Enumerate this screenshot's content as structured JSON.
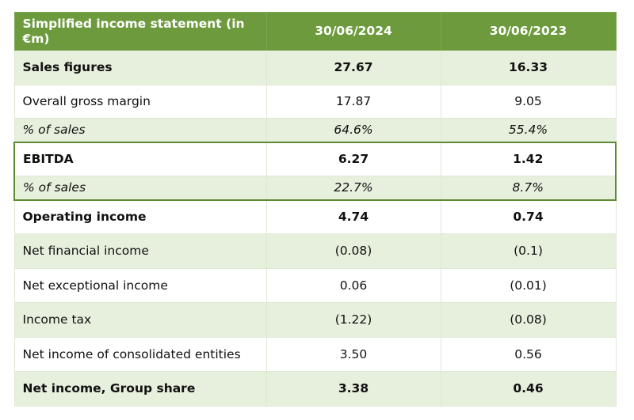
{
  "table": {
    "header": {
      "label": "Simplified income statement (in €m)",
      "col1": "30/06/2024",
      "col2": "30/06/2023"
    },
    "rows": [
      {
        "label": "Sales figures",
        "v2024": "27.67",
        "v2023": "16.33"
      },
      {
        "label": "Overall gross margin",
        "v2024": "17.87",
        "v2023": "9.05"
      },
      {
        "label": "% of sales",
        "v2024": "64.6%",
        "v2023": "55.4%"
      },
      {
        "label": "EBITDA",
        "v2024": "6.27",
        "v2023": "1.42"
      },
      {
        "label": "% of sales",
        "v2024": "22.7%",
        "v2023": "8.7%"
      },
      {
        "label": "Operating income",
        "v2024": "4.74",
        "v2023": "0.74"
      },
      {
        "label": "Net financial income",
        "v2024": "(0.08)",
        "v2023": "(0.1)"
      },
      {
        "label": "Net exceptional income",
        "v2024": "0.06",
        "v2023": "(0.01)"
      },
      {
        "label": "Income tax",
        "v2024": "(1.22)",
        "v2023": "(0.08)"
      },
      {
        "label": "Net income of consolidated entities",
        "v2024": "3.50",
        "v2023": "0.56"
      },
      {
        "label": "Net income, Group share",
        "v2024": "3.38",
        "v2023": "0.46"
      }
    ]
  },
  "colors": {
    "header_bg": "#6c9a3c",
    "row_band": "#e7efdd",
    "ebitda_border": "#5d8a33"
  }
}
